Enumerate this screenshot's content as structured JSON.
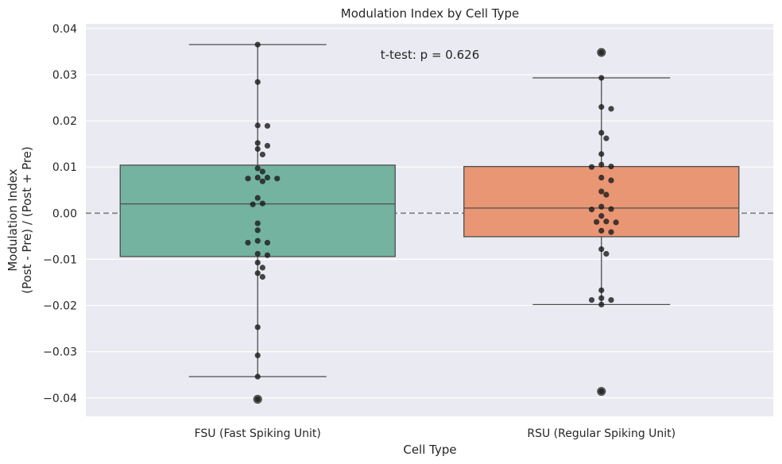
{
  "chart_data": {
    "type": "box",
    "title": "Modulation Index by Cell Type",
    "xlabel": "Cell Type",
    "ylabel_line1": "Modulation Index",
    "ylabel_line2": "(Post - Pre) / (Post + Pre)",
    "ylim": [
      -0.044,
      0.041
    ],
    "yticks": [
      -0.04,
      -0.03,
      -0.02,
      -0.01,
      0.0,
      0.01,
      0.02,
      0.03,
      0.04
    ],
    "ytick_labels": [
      "−0.04",
      "−0.03",
      "−0.02",
      "−0.01",
      "0.00",
      "0.01",
      "0.02",
      "0.03",
      "0.04"
    ],
    "reference_line": 0.0,
    "annotation": "t-test: p = 0.626",
    "grid": true,
    "categories": [
      "FSU (Fast Spiking Unit)",
      "RSU (Regular Spiking Unit)"
    ],
    "series": [
      {
        "name": "FSU (Fast Spiking Unit)",
        "color": "#73b3a0",
        "box": {
          "q1": -0.0094,
          "median": 0.002,
          "q3": 0.0104,
          "whisker_low": -0.0354,
          "whisker_high": 0.0365
        },
        "outliers": [
          -0.0403
        ],
        "points": [
          0.0365,
          0.0284,
          0.019,
          0.0189,
          0.0152,
          0.0146,
          0.0139,
          0.0127,
          0.0097,
          0.009,
          0.0077,
          0.0077,
          0.0075,
          0.0075,
          0.0069,
          0.0033,
          0.0021,
          0.0019,
          -0.0022,
          -0.0037,
          -0.006,
          -0.0064,
          -0.0064,
          -0.0088,
          -0.0091,
          -0.0107,
          -0.0118,
          -0.013,
          -0.0138,
          -0.0247,
          -0.0308,
          -0.0354,
          -0.0403
        ]
      },
      {
        "name": "RSU (Regular Spiking Unit)",
        "color": "#e99675",
        "box": {
          "q1": -0.0051,
          "median": 0.0011,
          "q3": 0.0101,
          "whisker_low": -0.0198,
          "whisker_high": 0.0293
        },
        "outliers": [
          0.0348,
          -0.0386
        ],
        "points": [
          0.0348,
          0.0293,
          0.023,
          0.0226,
          0.0174,
          0.0162,
          0.0128,
          0.0105,
          0.0101,
          0.01,
          0.0077,
          0.0071,
          0.0047,
          0.004,
          0.0014,
          0.0009,
          0.0008,
          -0.0006,
          -0.0018,
          -0.0019,
          -0.002,
          -0.0038,
          -0.0041,
          -0.0078,
          -0.0088,
          -0.0167,
          -0.0184,
          -0.0188,
          -0.0188,
          -0.0198,
          -0.0386
        ]
      }
    ]
  }
}
